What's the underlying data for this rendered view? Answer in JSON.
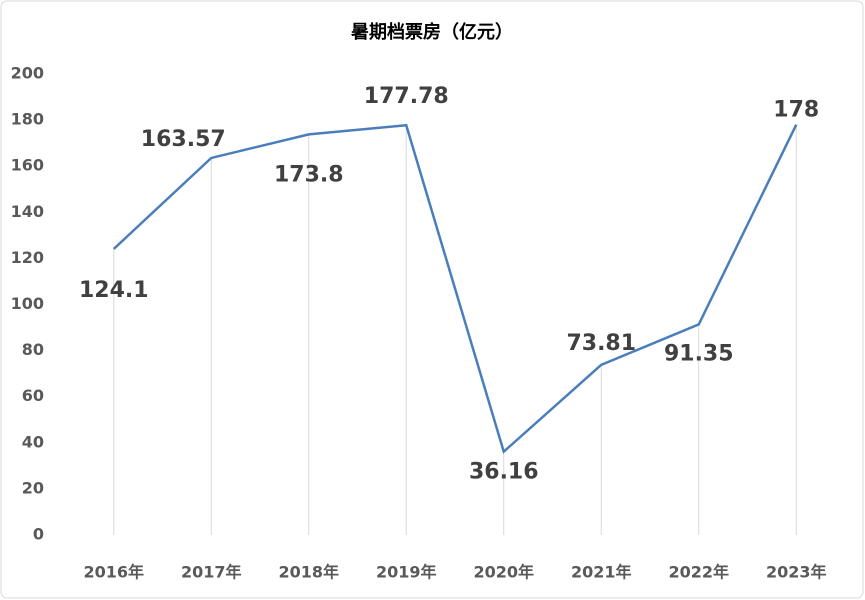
{
  "chart_data": {
    "type": "line",
    "title": "暑期档票房（亿元）",
    "categories": [
      "2016年",
      "2017年",
      "2018年",
      "2019年",
      "2020年",
      "2021年",
      "2022年",
      "2023年"
    ],
    "values": [
      124.1,
      163.57,
      173.8,
      177.78,
      36.16,
      73.81,
      91.35,
      178
    ],
    "color": "#4a7ebb",
    "ylim": [
      0,
      200
    ],
    "yticks": [
      0,
      20,
      40,
      60,
      80,
      100,
      120,
      140,
      160,
      180,
      200
    ],
    "drop_lines": true,
    "data_labels": true
  }
}
